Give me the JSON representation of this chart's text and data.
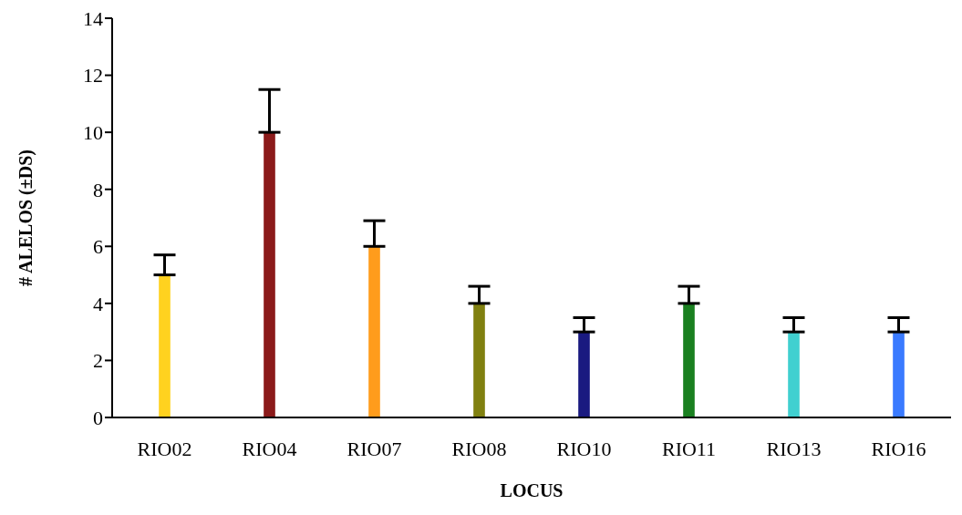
{
  "chart_data": {
    "type": "bar",
    "xlabel": "LOCUS",
    "ylabel": "# ALELOS (±DS)",
    "categories": [
      "RIO02",
      "RIO04",
      "RIO07",
      "RIO08",
      "RIO10",
      "RIO11",
      "RIO13",
      "RIO16"
    ],
    "values": [
      5,
      10,
      6,
      4,
      3,
      4,
      3,
      3
    ],
    "colors": [
      "#ffd21f",
      "#8b1a1a",
      "#ff9c1c",
      "#808010",
      "#1a1a80",
      "#1a8020",
      "#40d0d0",
      "#3a7aff"
    ],
    "errors": [
      [
        5,
        5.7
      ],
      [
        10,
        11.5
      ],
      [
        6,
        6.9
      ],
      [
        4,
        4.6
      ],
      [
        3,
        3.5
      ],
      [
        4,
        4.6
      ],
      [
        3,
        3.5
      ],
      [
        3,
        3.5
      ]
    ],
    "ylim": [
      0,
      14
    ],
    "yticks": [
      0,
      2,
      4,
      6,
      8,
      10,
      12,
      14
    ],
    "grid": false,
    "legend": false
  }
}
